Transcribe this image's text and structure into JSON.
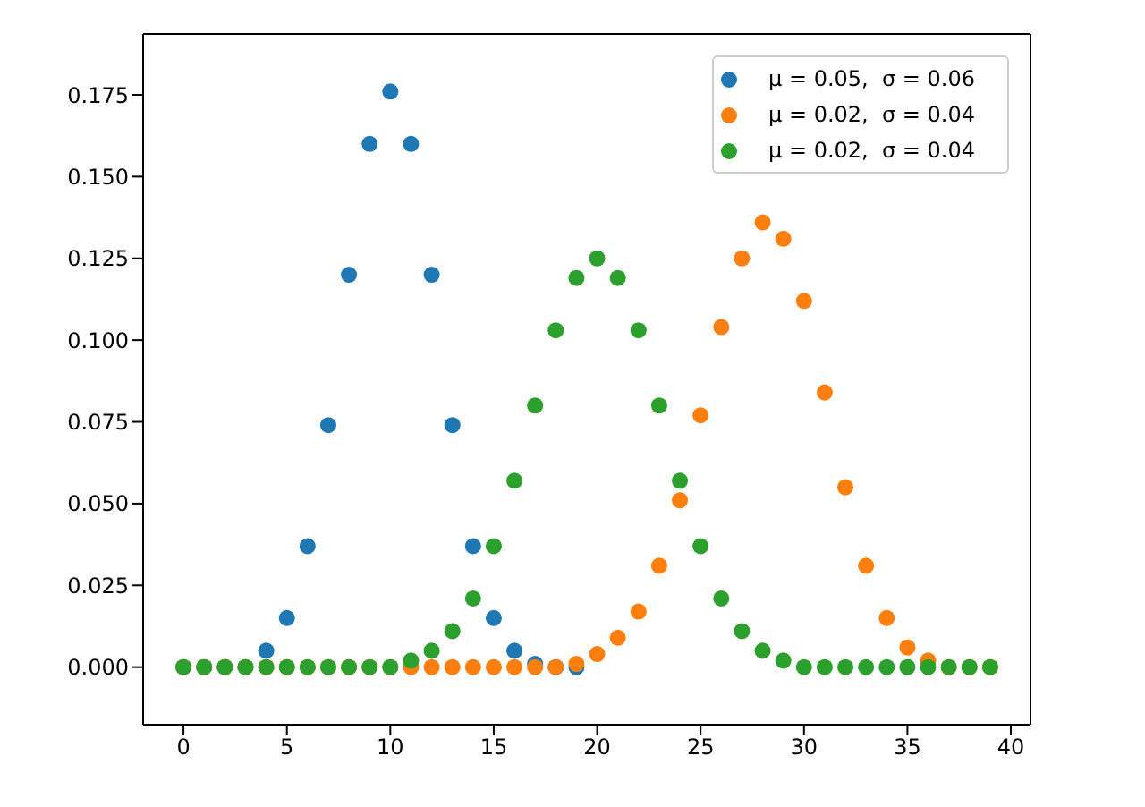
{
  "chart_data": {
    "type": "scatter",
    "x": [
      0,
      1,
      2,
      3,
      4,
      5,
      6,
      7,
      8,
      9,
      10,
      11,
      12,
      13,
      14,
      15,
      16,
      17,
      18,
      19,
      20,
      21,
      22,
      23,
      24,
      25,
      26,
      27,
      28,
      29,
      30,
      31,
      32,
      33,
      34,
      35,
      36,
      37,
      38,
      39
    ],
    "series": [
      {
        "name": "μ = 0.05,  σ = 0.06",
        "color": "#1f77b4",
        "x": [
          0,
          1,
          2,
          3,
          4,
          5,
          6,
          7,
          8,
          9,
          10,
          11,
          12,
          13,
          14,
          15,
          16,
          17,
          18,
          19
        ],
        "values": [
          0,
          0,
          0,
          0,
          0.005,
          0.015,
          0.037,
          0.074,
          0.12,
          0.16,
          0.176,
          0.16,
          0.12,
          0.074,
          0.037,
          0.015,
          0.005,
          0.001,
          0,
          0
        ]
      },
      {
        "name": "μ = 0.02,  σ = 0.04",
        "color": "#ff7f0e",
        "values": [
          0,
          0,
          0,
          0,
          0,
          0,
          0,
          0,
          0,
          0,
          0,
          0,
          0,
          0,
          0,
          0,
          0,
          0,
          0,
          0.001,
          0.004,
          0.009,
          0.017,
          0.031,
          0.051,
          0.077,
          0.104,
          0.125,
          0.136,
          0.131,
          0.112,
          0.084,
          0.055,
          0.031,
          0.015,
          0.006,
          0.002,
          0,
          0,
          0
        ]
      },
      {
        "name": "μ = 0.02,  σ = 0.04",
        "color": "#2ca02c",
        "values": [
          0,
          0,
          0,
          0,
          0,
          0,
          0,
          0,
          0,
          0,
          0,
          0.002,
          0.005,
          0.011,
          0.021,
          0.037,
          0.057,
          0.08,
          0.103,
          0.119,
          0.125,
          0.119,
          0.103,
          0.08,
          0.057,
          0.037,
          0.021,
          0.011,
          0.005,
          0.002,
          0,
          0,
          0,
          0,
          0,
          0,
          0,
          0,
          0,
          0
        ]
      }
    ],
    "xlim": [
      -1.95,
      40.95
    ],
    "xticks": [
      0,
      5,
      10,
      15,
      20,
      25,
      30,
      35,
      40
    ],
    "ylim": [
      -0.0176,
      0.1936
    ],
    "yticks": [
      {
        "value": 0,
        "label": "0.000"
      },
      0.025,
      {
        "value": 0.05,
        "label": "0.050"
      },
      0.075,
      {
        "value": 0.1,
        "label": "0.100"
      },
      0.125,
      {
        "value": 0.15,
        "label": "0.150"
      },
      0.175
    ],
    "marker": "circle",
    "legend": "top right",
    "grid": false
  }
}
